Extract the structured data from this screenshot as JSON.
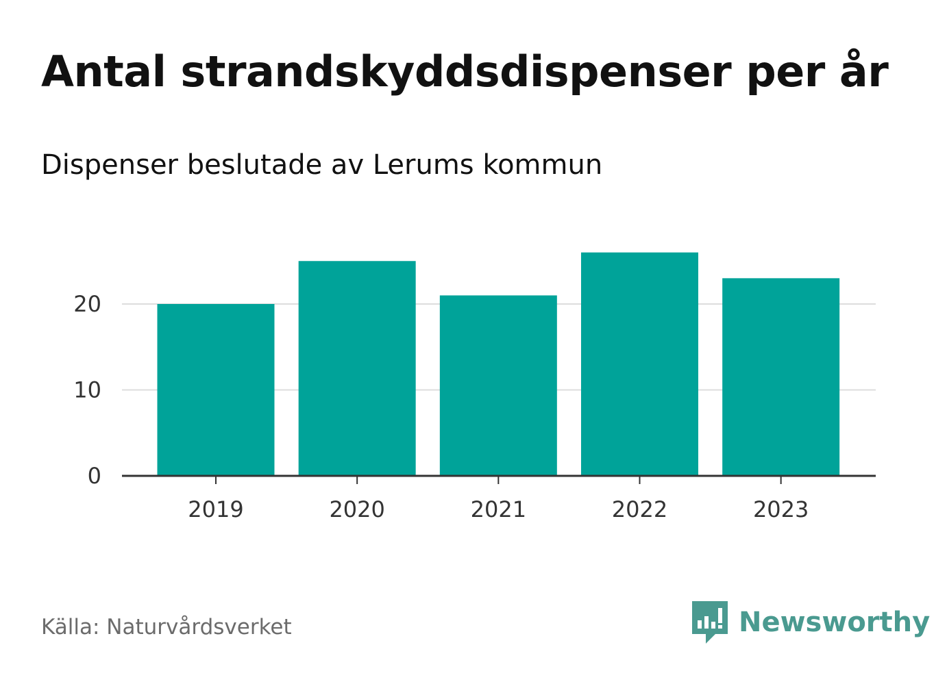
{
  "header": {
    "title": "Antal strandskyddsdispenser per år",
    "subtitle": "Dispenser beslutade av Lerums kommun"
  },
  "footer": {
    "source": "Källa: Naturvårdsverket",
    "brand": "Newsworthy",
    "brand_icon": "newsworthy-logo-icon"
  },
  "colors": {
    "bar": "#00a399",
    "grid": "#dddddd",
    "axis": "#333333",
    "brand": "#4a9a90"
  },
  "chart_data": {
    "type": "bar",
    "title": "Antal strandskyddsdispenser per år",
    "subtitle": "Dispenser beslutade av Lerums kommun",
    "categories": [
      "2019",
      "2020",
      "2021",
      "2022",
      "2023"
    ],
    "values": [
      20,
      25,
      21,
      26,
      23
    ],
    "xlabel": "",
    "ylabel": "",
    "ylim": [
      0,
      28
    ],
    "yticks": [
      0,
      10,
      20
    ],
    "grid": true,
    "legend": "none"
  }
}
